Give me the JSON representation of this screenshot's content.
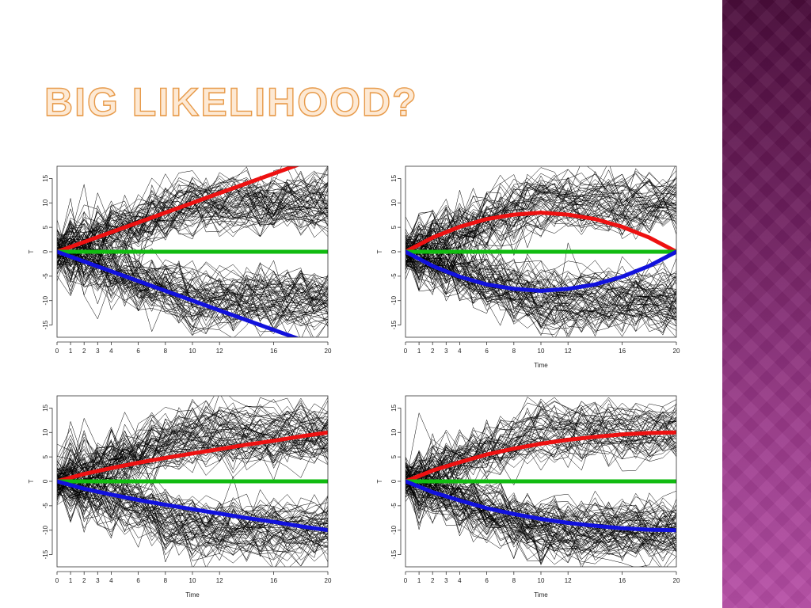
{
  "slide": {
    "title": "BIG LIKELIHOOD?",
    "accent_color": "#e79a4a",
    "band_color": "#8a2f7c"
  },
  "colors": {
    "red": "#ee1111",
    "green": "#11bb11",
    "blue": "#1111dd",
    "paths": "#000000"
  },
  "chart_data": [
    {
      "type": "line",
      "title": "",
      "xlabel": "",
      "ylabel": "T",
      "xlim": [
        0,
        20
      ],
      "ylim": [
        -17.5,
        17.5
      ],
      "xticks": [
        0,
        1,
        2,
        3,
        4,
        6,
        8,
        10,
        12,
        16,
        20
      ],
      "yticks": [
        15,
        10,
        5,
        0,
        -5,
        -10,
        -15
      ],
      "series": [
        {
          "color": "red",
          "x": [
            0,
            20
          ],
          "y": [
            0,
            20
          ]
        },
        {
          "color": "green",
          "x": [
            0,
            20
          ],
          "y": [
            0,
            0
          ]
        },
        {
          "color": "blue",
          "x": [
            0,
            20
          ],
          "y": [
            0,
            -20
          ]
        }
      ]
    },
    {
      "type": "line",
      "title": "",
      "xlabel": "Time",
      "ylabel": "T",
      "xlim": [
        0,
        20
      ],
      "ylim": [
        -17.5,
        17.5
      ],
      "xticks": [
        0,
        1,
        2,
        3,
        4,
        6,
        8,
        10,
        12,
        16,
        20
      ],
      "yticks": [
        15,
        10,
        5,
        0,
        -5,
        -10,
        -15
      ],
      "series": [
        {
          "color": "red",
          "x": [
            0,
            2,
            4,
            6,
            8,
            10,
            12,
            14,
            16,
            18,
            20
          ],
          "y": [
            0,
            2.9,
            5.1,
            6.7,
            7.6,
            8.0,
            7.6,
            6.7,
            5.1,
            2.9,
            0
          ]
        },
        {
          "color": "green",
          "x": [
            0,
            20
          ],
          "y": [
            0,
            0
          ]
        },
        {
          "color": "blue",
          "x": [
            0,
            2,
            4,
            6,
            8,
            10,
            12,
            14,
            16,
            18,
            20
          ],
          "y": [
            0,
            -2.9,
            -5.1,
            -6.7,
            -7.6,
            -8.0,
            -7.6,
            -6.7,
            -5.1,
            -2.9,
            0
          ]
        }
      ]
    },
    {
      "type": "line",
      "title": "",
      "xlabel": "Time",
      "ylabel": "T",
      "xlim": [
        0,
        20
      ],
      "ylim": [
        -17.5,
        17.5
      ],
      "xticks": [
        0,
        1,
        2,
        3,
        4,
        6,
        8,
        10,
        12,
        16,
        20
      ],
      "yticks": [
        15,
        10,
        5,
        0,
        -5,
        -10,
        -15
      ],
      "series": [
        {
          "color": "red",
          "x": [
            0,
            2,
            4,
            6,
            8,
            10,
            12,
            14,
            16,
            18,
            20
          ],
          "y": [
            0,
            1.5,
            2.7,
            3.8,
            4.8,
            5.7,
            6.6,
            7.5,
            8.3,
            9.2,
            10
          ]
        },
        {
          "color": "green",
          "x": [
            0,
            20
          ],
          "y": [
            0,
            0
          ]
        },
        {
          "color": "blue",
          "x": [
            0,
            2,
            4,
            6,
            8,
            10,
            12,
            14,
            16,
            18,
            20
          ],
          "y": [
            0,
            -1.5,
            -2.7,
            -3.8,
            -4.8,
            -5.7,
            -6.6,
            -7.5,
            -8.3,
            -9.2,
            -10
          ]
        }
      ]
    },
    {
      "type": "line",
      "title": "",
      "xlabel": "Time",
      "ylabel": "T",
      "xlim": [
        0,
        20
      ],
      "ylim": [
        -17.5,
        17.5
      ],
      "xticks": [
        0,
        1,
        2,
        3,
        4,
        6,
        8,
        10,
        12,
        16,
        20
      ],
      "yticks": [
        15,
        10,
        5,
        0,
        -5,
        -10,
        -15
      ],
      "series": [
        {
          "color": "red",
          "x": [
            0,
            2,
            4,
            6,
            8,
            10,
            12,
            14,
            16,
            18,
            20
          ],
          "y": [
            0,
            2.2,
            3.9,
            5.5,
            6.7,
            7.7,
            8.5,
            9.1,
            9.6,
            9.9,
            10
          ]
        },
        {
          "color": "green",
          "x": [
            0,
            20
          ],
          "y": [
            0,
            0
          ]
        },
        {
          "color": "blue",
          "x": [
            0,
            2,
            4,
            6,
            8,
            10,
            12,
            14,
            16,
            18,
            20
          ],
          "y": [
            0,
            -2.2,
            -3.9,
            -5.5,
            -6.7,
            -7.7,
            -8.5,
            -9.1,
            -9.6,
            -9.9,
            -10
          ]
        }
      ]
    }
  ]
}
